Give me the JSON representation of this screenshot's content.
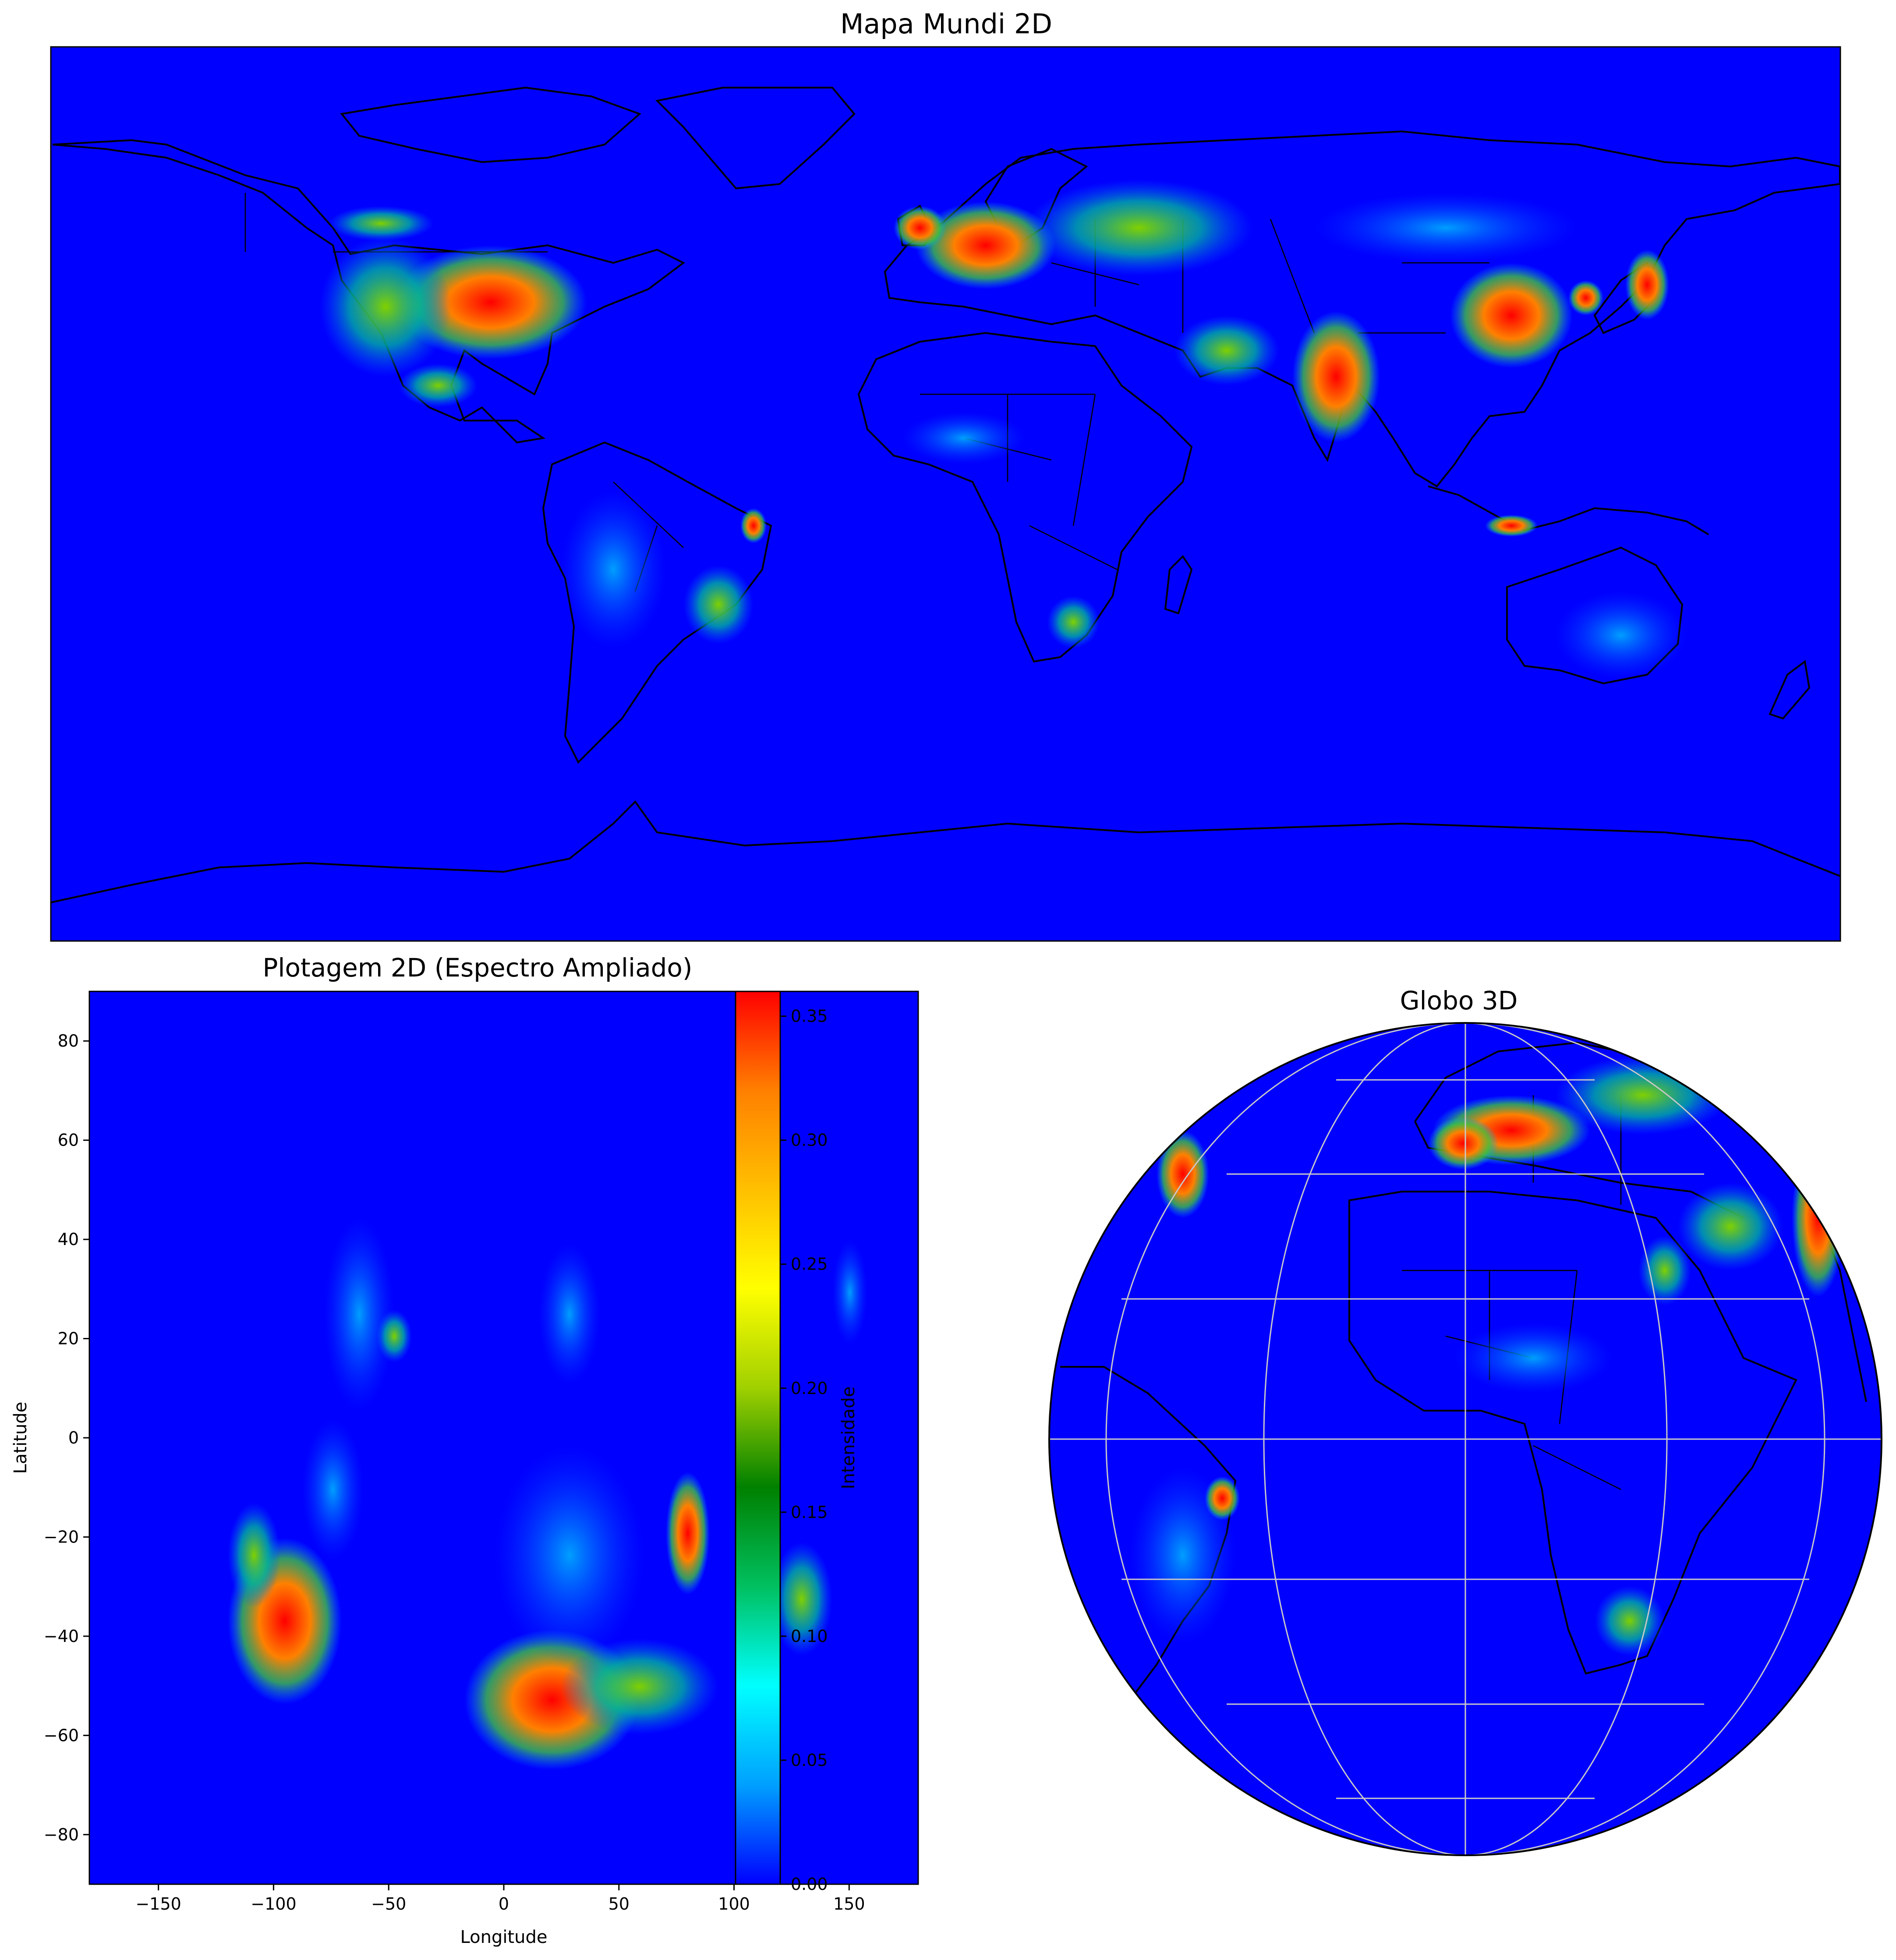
{
  "top_panel": {
    "title": "Mapa Mundi 2D",
    "background": "#0000ff"
  },
  "bottom_left_panel": {
    "title": "Plotagem 2D (Espectro Ampliado)",
    "xlabel": "Longitude",
    "ylabel": "Latitude",
    "x_ticks": [
      "−150",
      "−100",
      "−50",
      "0",
      "50",
      "100",
      "150"
    ],
    "y_ticks": [
      "80",
      "60",
      "40",
      "20",
      "0",
      "−20",
      "−40",
      "−60",
      "−80"
    ],
    "xlim": [
      -180,
      180
    ],
    "ylim": [
      -90,
      90
    ],
    "background": "#0000ff"
  },
  "colorbar": {
    "label": "Intensidade",
    "ticks": [
      "0.00",
      "0.05",
      "0.10",
      "0.15",
      "0.20",
      "0.25",
      "0.30",
      "0.35"
    ],
    "range": [
      0.0,
      0.36
    ],
    "colormap": [
      "#0000ff",
      "#00a0ff",
      "#00ffff",
      "#00c060",
      "#008000",
      "#a0d000",
      "#ffff00",
      "#ffc000",
      "#ff8000",
      "#ff0000"
    ]
  },
  "bottom_right_panel": {
    "title": "Globo 3D",
    "background": "#0000ff",
    "graticule_color": "#c8c8c8"
  },
  "chart_data": [
    {
      "type": "heatmap",
      "title": "Mapa Mundi 2D",
      "projection": "equirectangular",
      "grid": false
    },
    {
      "type": "heatmap",
      "title": "Plotagem 2D (Espectro Ampliado)",
      "xlabel": "Longitude",
      "ylabel": "Latitude",
      "xlim": [
        -180,
        180
      ],
      "ylim": [
        -90,
        90
      ],
      "x_ticks": [
        -150,
        -100,
        -50,
        0,
        50,
        100,
        150
      ],
      "y_ticks": [
        80,
        60,
        40,
        20,
        0,
        -20,
        -40,
        -60,
        -80
      ],
      "colorbar": {
        "label": "Intensidade",
        "min": 0.0,
        "max": 0.36,
        "ticks": [
          0.0,
          0.05,
          0.1,
          0.15,
          0.2,
          0.25,
          0.3,
          0.35
        ]
      }
    },
    {
      "type": "heatmap",
      "title": "Globo 3D",
      "projection": "orthographic",
      "grid": true
    }
  ]
}
